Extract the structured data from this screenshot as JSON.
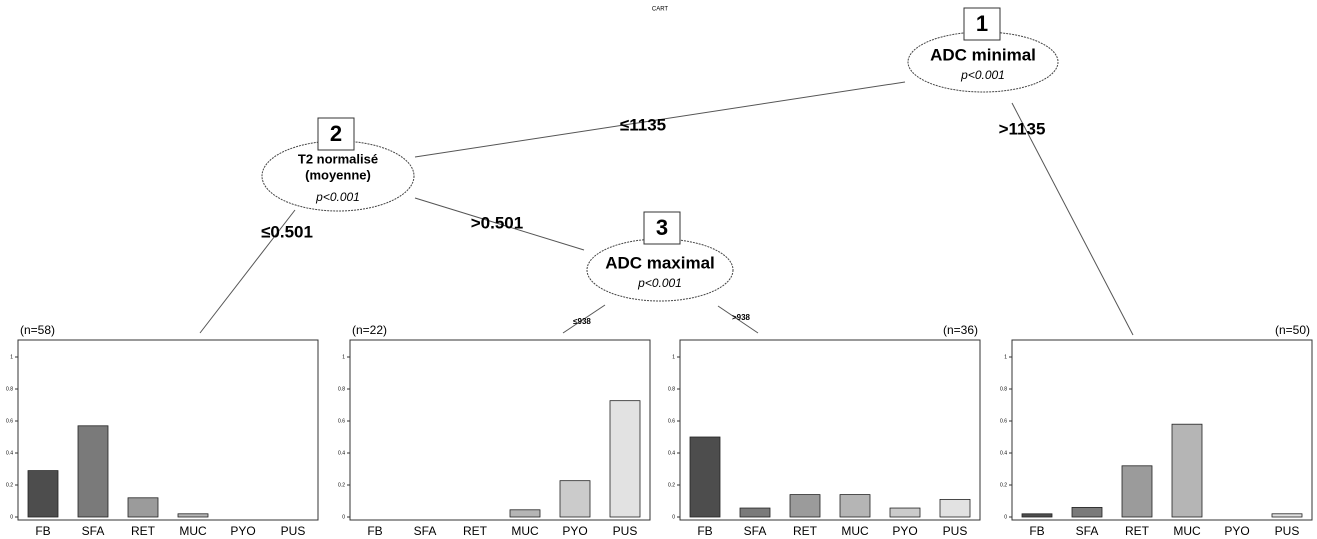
{
  "title": "CART",
  "tree": {
    "nodes": [
      {
        "id": "1",
        "label": [
          "ADC minimal"
        ],
        "p": "p<0.001"
      },
      {
        "id": "2",
        "label": [
          "T2 normalisé",
          "(moyenne)"
        ],
        "p": "p<0.001"
      },
      {
        "id": "3",
        "label": [
          "ADC maximal"
        ],
        "p": "p<0.001"
      }
    ],
    "edges": [
      {
        "label": "≤1135"
      },
      {
        "label": ">1135"
      },
      {
        "label": "≤0.501"
      },
      {
        "label": ">0.501"
      },
      {
        "label": "≤938"
      },
      {
        "label": ">938"
      }
    ]
  },
  "chart_data": [
    {
      "type": "bar",
      "title": "(n=58)",
      "categories": [
        "FB",
        "SFA",
        "RET",
        "MUC",
        "PYO",
        "PUS"
      ],
      "values": [
        0.29,
        0.57,
        0.12,
        0.02,
        0,
        0
      ],
      "colors": [
        "#4d4d4d",
        "#7a7a7a",
        "#9b9b9b",
        "#b5b5b5",
        "#cbcbcb",
        "#e2e2e2"
      ],
      "ylim": [
        0,
        1
      ],
      "yticks": [
        0,
        0.2,
        0.4,
        0.6,
        0.8,
        1
      ]
    },
    {
      "type": "bar",
      "title": "(n=22)",
      "categories": [
        "FB",
        "SFA",
        "RET",
        "MUC",
        "PYO",
        "PUS"
      ],
      "values": [
        0,
        0,
        0,
        0.045,
        0.227,
        0.727
      ],
      "colors": [
        "#4d4d4d",
        "#7a7a7a",
        "#9b9b9b",
        "#b5b5b5",
        "#cbcbcb",
        "#e2e2e2"
      ],
      "ylim": [
        0,
        1
      ],
      "yticks": [
        0,
        0.2,
        0.4,
        0.6,
        0.8,
        1
      ]
    },
    {
      "type": "bar",
      "title": "(n=36)",
      "categories": [
        "FB",
        "SFA",
        "RET",
        "MUC",
        "PYO",
        "PUS"
      ],
      "values": [
        0.5,
        0.056,
        0.14,
        0.14,
        0.056,
        0.11
      ],
      "colors": [
        "#4d4d4d",
        "#7a7a7a",
        "#9b9b9b",
        "#b5b5b5",
        "#cbcbcb",
        "#e2e2e2"
      ],
      "ylim": [
        0,
        1
      ],
      "yticks": [
        0,
        0.2,
        0.4,
        0.6,
        0.8,
        1
      ]
    },
    {
      "type": "bar",
      "title": "(n=50)",
      "categories": [
        "FB",
        "SFA",
        "RET",
        "MUC",
        "PYO",
        "PUS"
      ],
      "values": [
        0.02,
        0.06,
        0.32,
        0.58,
        0,
        0.02
      ],
      "colors": [
        "#4d4d4d",
        "#7a7a7a",
        "#9b9b9b",
        "#b5b5b5",
        "#cbcbcb",
        "#e2e2e2"
      ],
      "ylim": [
        0,
        1
      ],
      "yticks": [
        0,
        0.2,
        0.4,
        0.6,
        0.8,
        1
      ]
    }
  ]
}
